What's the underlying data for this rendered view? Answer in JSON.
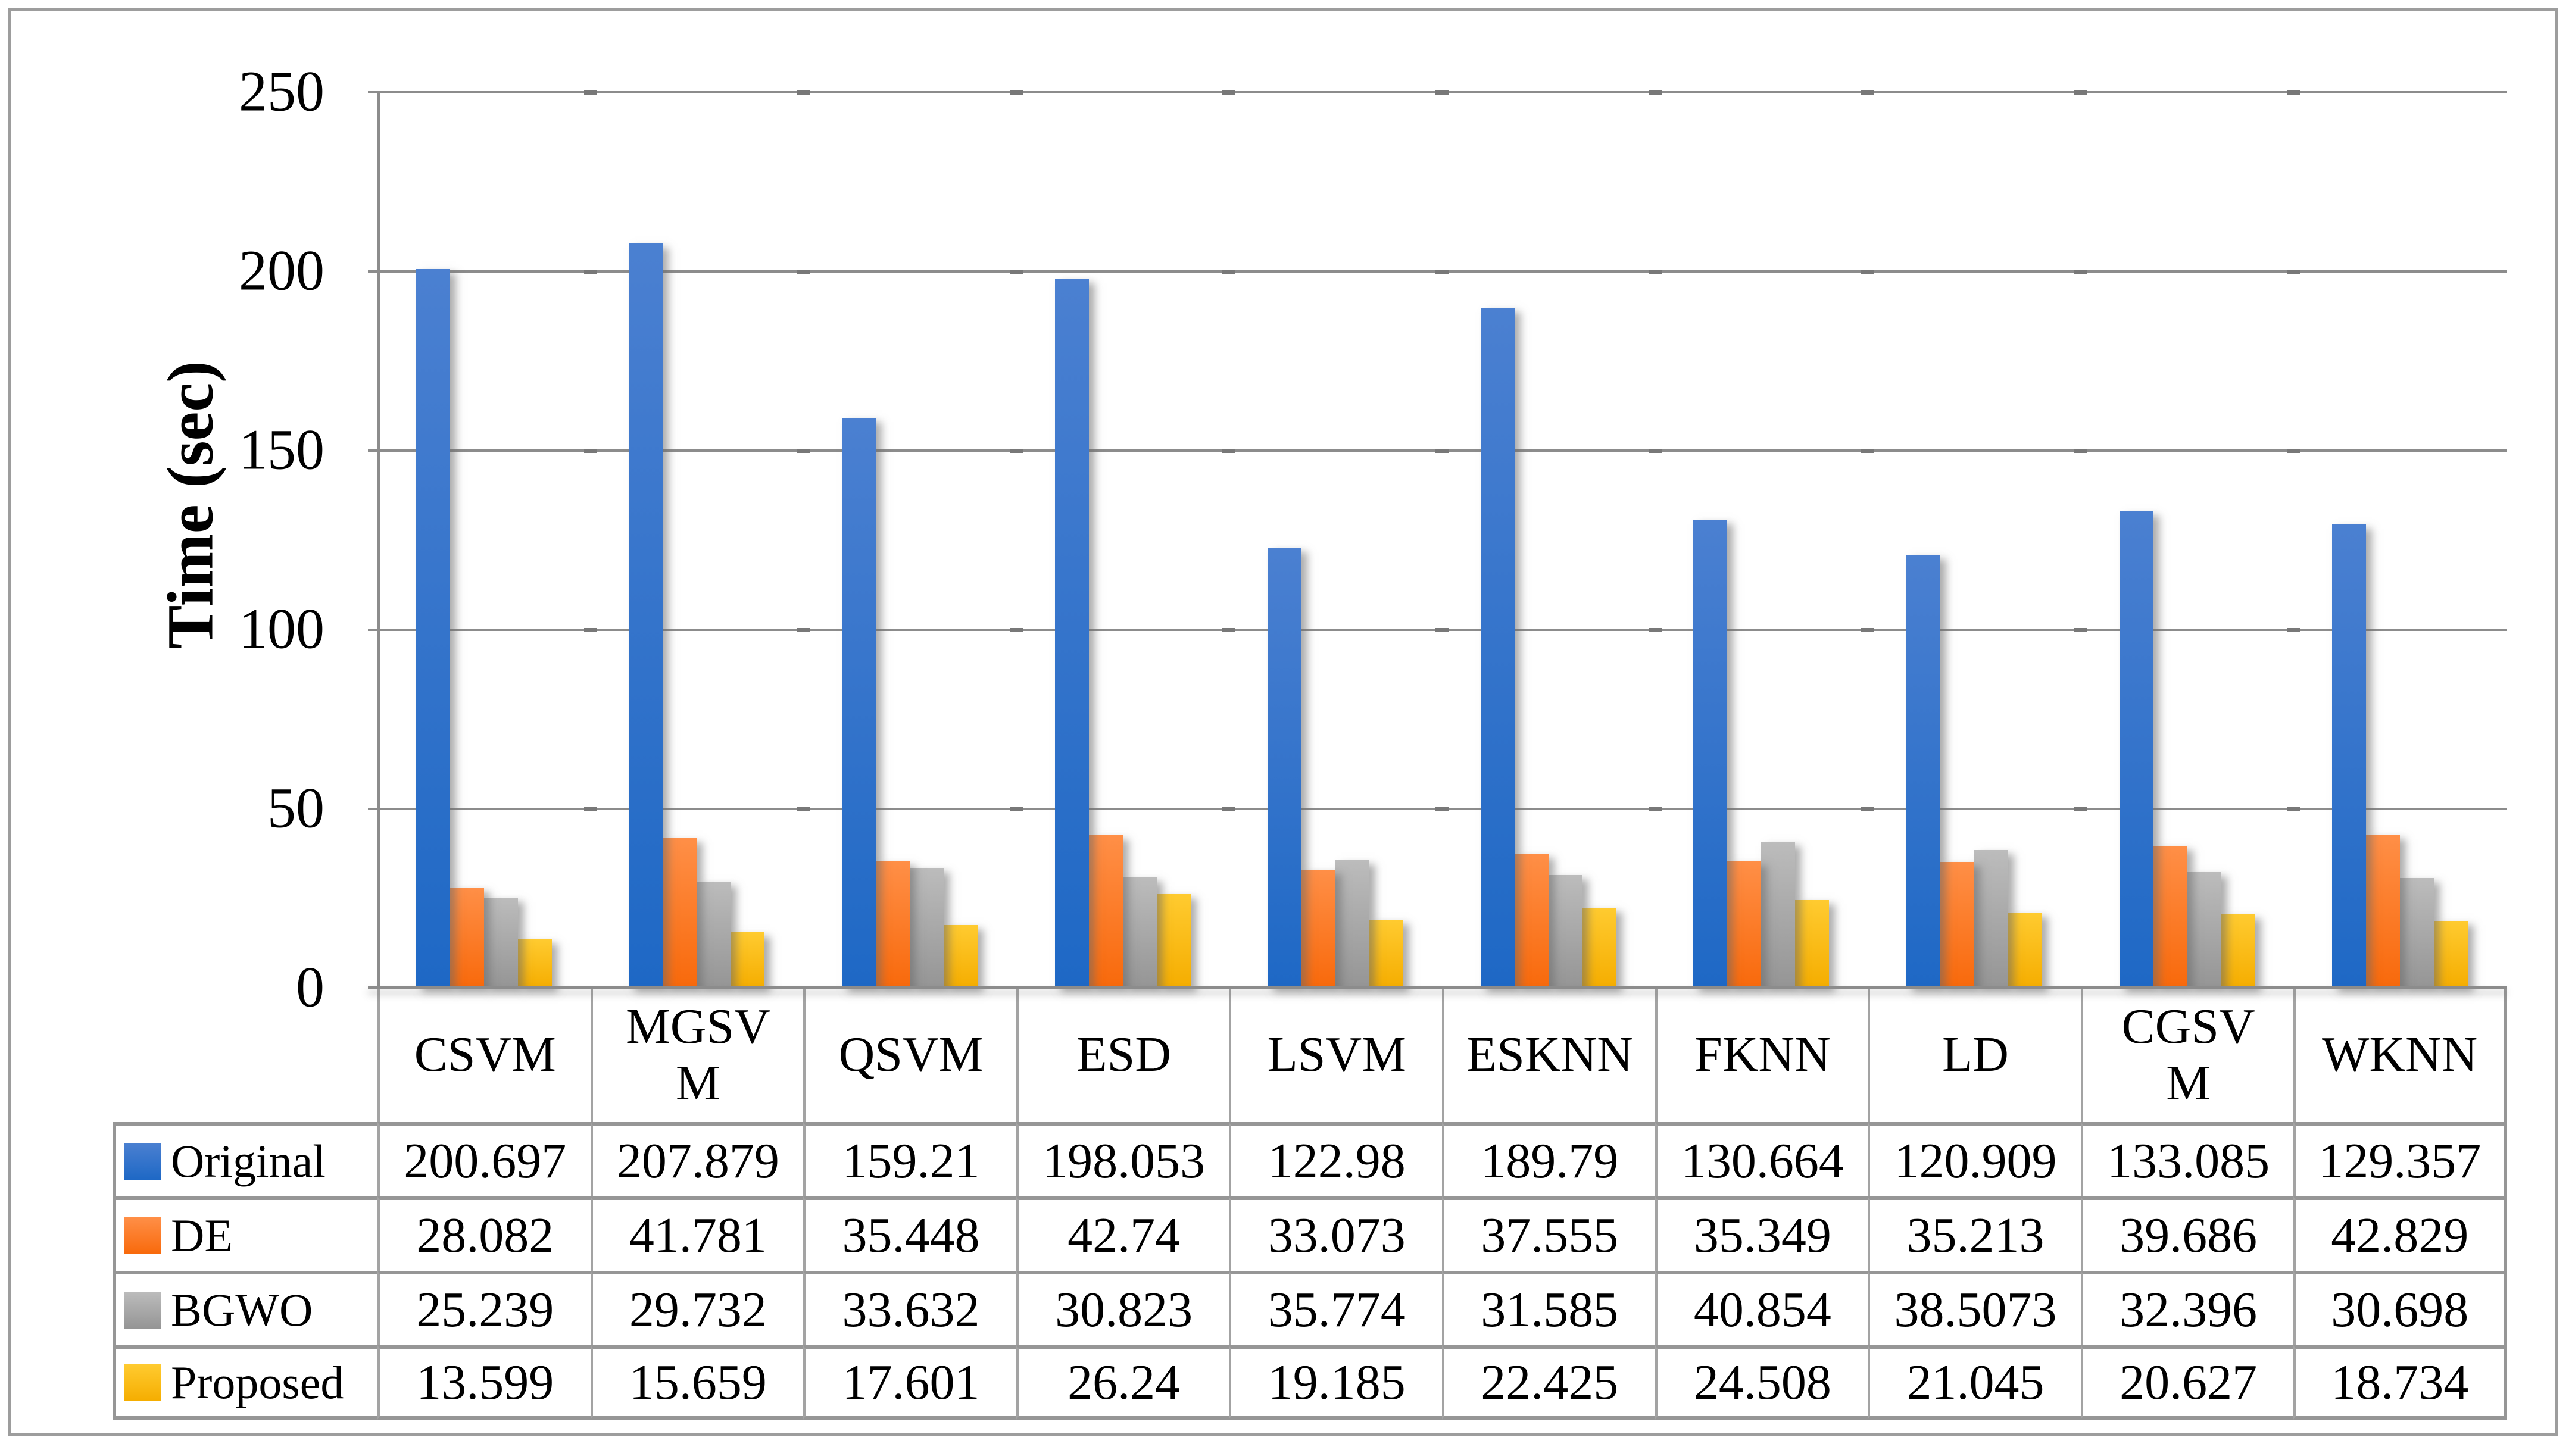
{
  "figure": {
    "background": "#FFFFFF",
    "frame_color": "#9D9D9D",
    "grid_color": "#8C8C8C",
    "table_vline_color": "#A3A3A3",
    "table_hline_color": "#969696"
  },
  "chart_data": {
    "type": "bar",
    "title": "",
    "xlabel": "",
    "ylabel": "Time (sec)",
    "ylim": [
      0,
      250
    ],
    "yticks": [
      0,
      50,
      100,
      150,
      200,
      250
    ],
    "grid": "horizontal gridlines every 50",
    "legend_position": "row headers of data table below chart",
    "categories": [
      "CSVM",
      "MGSVM",
      "QSVM",
      "ESD",
      "LSVM",
      "ESKNN",
      "FKNN",
      "LD",
      "CGSVM",
      "WKNN"
    ],
    "category_display_lines": [
      [
        "CSVM"
      ],
      [
        "MGSV",
        "M"
      ],
      [
        "QSVM"
      ],
      [
        "ESD"
      ],
      [
        "LSVM"
      ],
      [
        "ESKNN"
      ],
      [
        "FKNN"
      ],
      [
        "LD"
      ],
      [
        "CGSV",
        "M"
      ],
      [
        "WKNN"
      ]
    ],
    "series": [
      {
        "name": "Original",
        "color_top": "#4B80D1",
        "color_bottom": "#1E68C5",
        "values": [
          200.697,
          207.879,
          159.21,
          198.053,
          122.98,
          189.79,
          130.664,
          120.909,
          133.085,
          129.357
        ]
      },
      {
        "name": "DE",
        "color_top": "#FF8F47",
        "color_bottom": "#F8690B",
        "values": [
          28.082,
          41.781,
          35.448,
          42.74,
          33.073,
          37.555,
          35.349,
          35.213,
          39.686,
          42.829
        ]
      },
      {
        "name": "BGWO",
        "color_top": "#BCBCBC",
        "color_bottom": "#959595",
        "values": [
          25.239,
          29.732,
          33.632,
          30.823,
          35.774,
          31.585,
          40.854,
          38.5073,
          32.396,
          30.698
        ]
      },
      {
        "name": "Proposed",
        "color_top": "#FFCB30",
        "color_bottom": "#F5AD00",
        "values": [
          13.599,
          15.659,
          17.601,
          26.24,
          19.185,
          22.425,
          24.508,
          21.045,
          20.627,
          18.734
        ]
      }
    ]
  }
}
